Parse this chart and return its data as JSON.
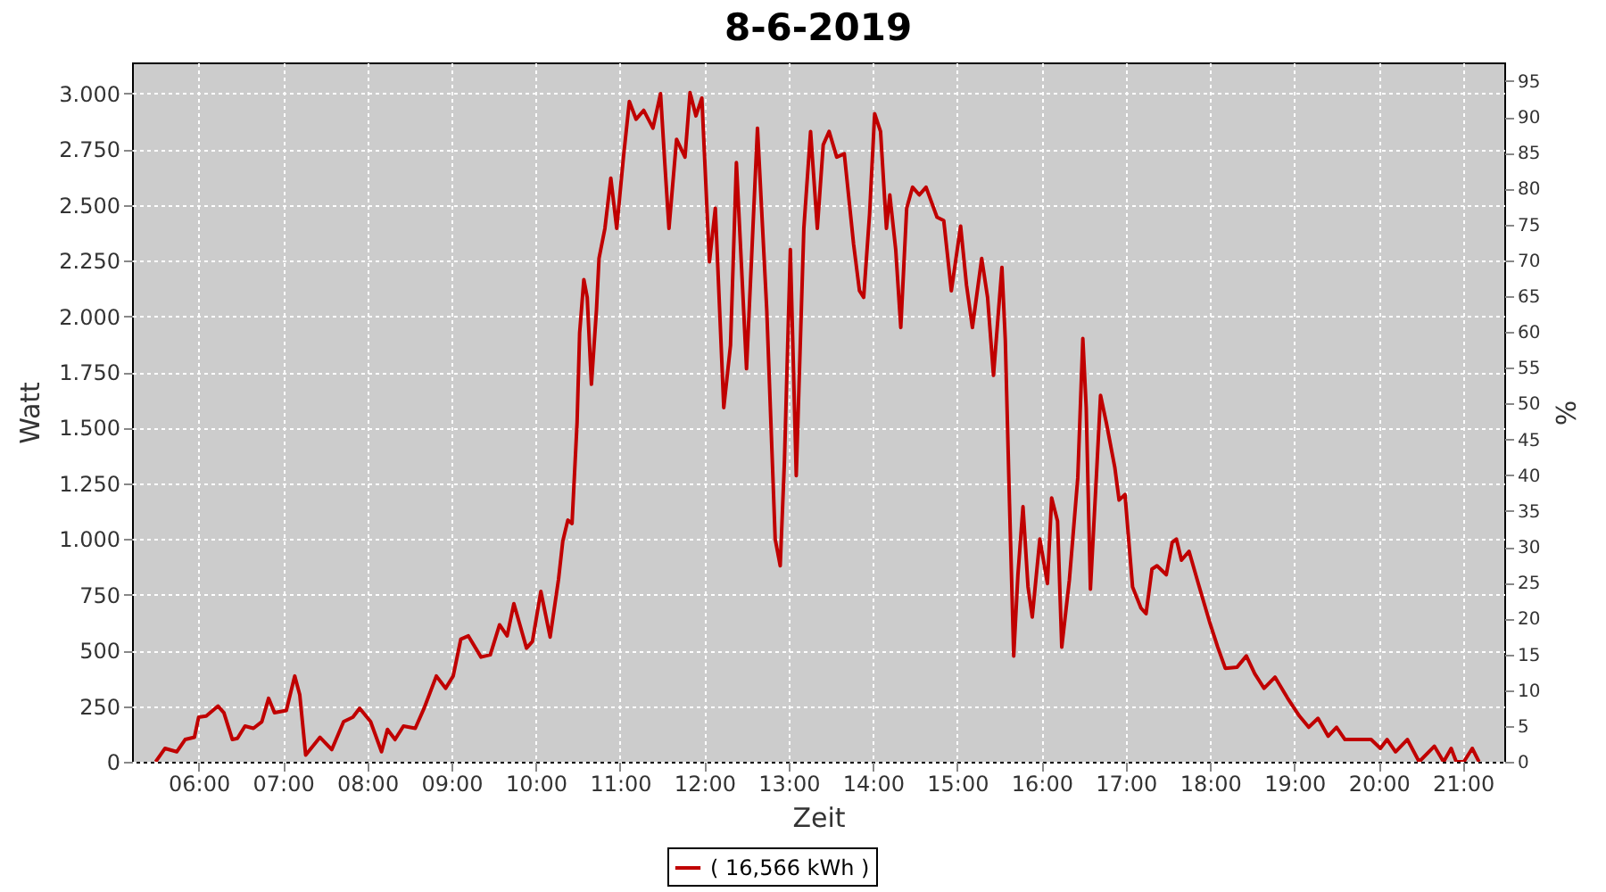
{
  "chart_data": {
    "type": "line",
    "title": "8-6-2019",
    "xlabel": "Zeit",
    "ylabel": "Watt",
    "y2label": "%",
    "xlim": [
      5.21,
      21.49
    ],
    "xticks": [
      {
        "value": 6,
        "label": "06:00"
      },
      {
        "value": 7,
        "label": "07:00"
      },
      {
        "value": 8,
        "label": "08:00"
      },
      {
        "value": 9,
        "label": "09:00"
      },
      {
        "value": 10,
        "label": "10:00"
      },
      {
        "value": 11,
        "label": "11:00"
      },
      {
        "value": 12,
        "label": "12:00"
      },
      {
        "value": 13,
        "label": "13:00"
      },
      {
        "value": 14,
        "label": "14:00"
      },
      {
        "value": 15,
        "label": "15:00"
      },
      {
        "value": 16,
        "label": "16:00"
      },
      {
        "value": 17,
        "label": "17:00"
      },
      {
        "value": 18,
        "label": "18:00"
      },
      {
        "value": 19,
        "label": "19:00"
      },
      {
        "value": 20,
        "label": "20:00"
      },
      {
        "value": 21,
        "label": "21:00"
      }
    ],
    "ylim": [
      0,
      3140
    ],
    "yticks": [
      0,
      {
        "value": 250,
        "label": "250"
      },
      {
        "value": 500,
        "label": "500"
      },
      {
        "value": 750,
        "label": "750"
      },
      {
        "value": 1000,
        "label": "1.000"
      },
      {
        "value": 1250,
        "label": "1.250"
      },
      {
        "value": 1500,
        "label": "1.500"
      },
      {
        "value": 1750,
        "label": "1.750"
      },
      {
        "value": 2000,
        "label": "2.000"
      },
      {
        "value": 2250,
        "label": "2.250"
      },
      {
        "value": 2500,
        "label": "2.500"
      },
      {
        "value": 2750,
        "label": "2.750"
      },
      {
        "value": 3000,
        "label": "3.000"
      }
    ],
    "y2lim": [
      0,
      97.6
    ],
    "y2ticks": [
      0,
      5,
      10,
      15,
      20,
      25,
      30,
      35,
      40,
      45,
      50,
      55,
      60,
      65,
      70,
      75,
      80,
      85,
      90,
      95
    ],
    "grid": true,
    "legend": "bottom",
    "x": [
      5.49,
      5.6,
      5.74,
      5.84,
      5.95,
      6.0,
      6.09,
      6.23,
      6.3,
      6.4,
      6.46,
      6.55,
      6.65,
      6.75,
      6.83,
      6.9,
      7.04,
      7.14,
      7.2,
      7.27,
      7.44,
      7.58,
      7.72,
      7.83,
      7.91,
      8.04,
      8.17,
      8.24,
      8.33,
      8.43,
      8.57,
      8.68,
      8.82,
      8.93,
      9.02,
      9.11,
      9.2,
      9.35,
      9.46,
      9.57,
      9.66,
      9.74,
      9.89,
      9.96,
      10.06,
      10.17,
      10.27,
      10.32,
      10.38,
      10.43,
      10.49,
      10.52,
      10.57,
      10.61,
      10.66,
      10.72,
      10.75,
      10.82,
      10.89,
      10.96,
      11.04,
      11.11,
      11.19,
      11.28,
      11.39,
      11.48,
      11.53,
      11.58,
      11.67,
      11.77,
      11.83,
      11.9,
      11.97,
      12.06,
      12.13,
      12.23,
      12.31,
      12.38,
      12.5,
      12.63,
      12.74,
      12.84,
      12.9,
      12.95,
      13.02,
      13.09,
      13.18,
      13.26,
      13.34,
      13.41,
      13.48,
      13.57,
      13.66,
      13.77,
      13.84,
      13.89,
      13.96,
      14.02,
      14.09,
      14.16,
      14.2,
      14.27,
      14.33,
      14.4,
      14.47,
      14.55,
      14.63,
      14.76,
      14.84,
      14.93,
      15.04,
      15.11,
      15.18,
      15.29,
      15.36,
      15.43,
      15.53,
      15.57,
      15.62,
      15.67,
      15.72,
      15.78,
      15.84,
      15.89,
      15.98,
      16.07,
      16.12,
      16.19,
      16.24,
      16.33,
      16.43,
      16.49,
      16.53,
      16.58,
      16.65,
      16.7,
      16.77,
      16.87,
      16.92,
      16.99,
      17.08,
      17.18,
      17.24,
      17.31,
      17.37,
      17.48,
      17.55,
      17.6,
      17.66,
      17.75,
      17.86,
      18.0,
      18.09,
      18.18,
      18.32,
      18.43,
      18.53,
      18.64,
      18.77,
      18.92,
      19.06,
      19.17,
      19.28,
      19.4,
      19.5,
      19.6,
      19.91,
      20.02,
      20.1,
      20.2,
      20.34,
      20.48,
      20.66,
      20.77,
      20.86,
      20.92,
      21.01,
      21.11,
      21.19
    ],
    "series": [
      {
        "name": "( 16,566 kWh )",
        "color": "#c00000",
        "values": [
          0,
          60,
          45,
          100,
          110,
          200,
          205,
          250,
          220,
          100,
          105,
          160,
          150,
          180,
          285,
          220,
          230,
          385,
          300,
          30,
          110,
          55,
          180,
          200,
          240,
          180,
          45,
          145,
          100,
          160,
          150,
          245,
          385,
          330,
          385,
          550,
          565,
          470,
          480,
          615,
          565,
          710,
          510,
          540,
          765,
          560,
          820,
          990,
          1085,
          1070,
          1525,
          1925,
          2165,
          2085,
          1695,
          2030,
          2260,
          2395,
          2620,
          2395,
          2715,
          2965,
          2885,
          2925,
          2845,
          3000,
          2690,
          2395,
          2795,
          2715,
          3005,
          2900,
          2980,
          2245,
          2485,
          1590,
          1870,
          2690,
          1765,
          2845,
          2030,
          1000,
          880,
          1350,
          2300,
          1285,
          2395,
          2830,
          2395,
          2770,
          2830,
          2715,
          2730,
          2325,
          2115,
          2085,
          2460,
          2910,
          2830,
          2395,
          2545,
          2300,
          1950,
          2485,
          2580,
          2545,
          2580,
          2445,
          2430,
          2115,
          2405,
          2140,
          1950,
          2260,
          2085,
          1735,
          2220,
          1895,
          1160,
          475,
          840,
          1145,
          785,
          650,
          1000,
          800,
          1185,
          1080,
          515,
          815,
          1275,
          1900,
          1590,
          775,
          1275,
          1645,
          1520,
          1320,
          1175,
          1200,
          785,
          690,
          665,
          865,
          880,
          840,
          985,
          1000,
          905,
          945,
          800,
          620,
          515,
          420,
          425,
          475,
          395,
          330,
          380,
          285,
          205,
          155,
          195,
          115,
          155,
          100,
          100,
          60,
          100,
          45,
          100,
          0,
          70,
          0,
          60,
          0,
          0,
          60,
          0
        ]
      }
    ]
  }
}
